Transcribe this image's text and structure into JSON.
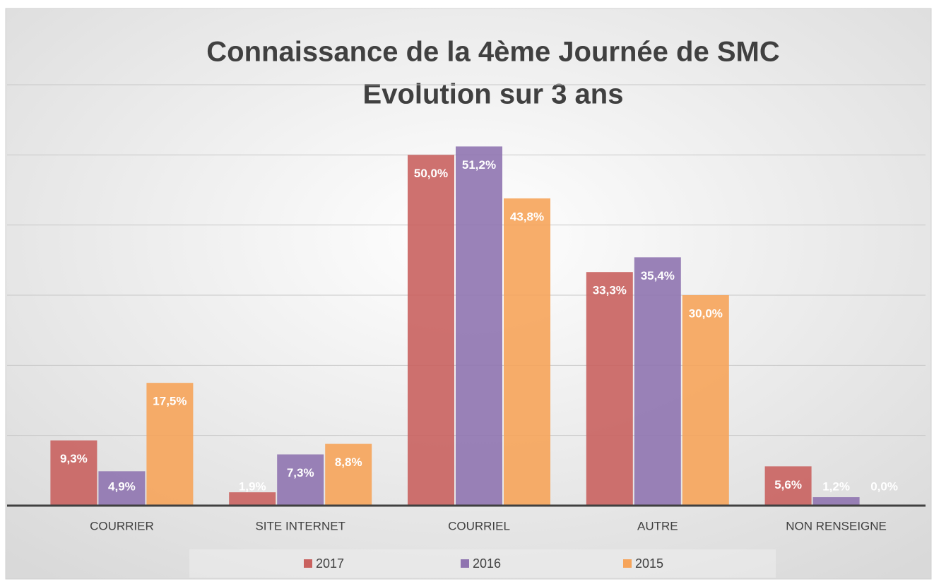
{
  "chart_data": {
    "type": "bar",
    "title": "Connaissance de la 4ème Journée de SMC",
    "subtitle": "Evolution sur 3 ans",
    "categories": [
      "COURRIER",
      "SITE INTERNET",
      "COURRIEL",
      "AUTRE",
      "NON RENSEIGNE"
    ],
    "series": [
      {
        "name": "2017",
        "color": "#c9625f",
        "values": [
          9.3,
          1.9,
          50.0,
          33.3,
          5.6
        ],
        "value_labels": [
          "9,3%",
          "1,9%",
          "50,0%",
          "33,3%",
          "5,6%"
        ]
      },
      {
        "name": "2016",
        "color": "#8f74b0",
        "values": [
          4.9,
          7.3,
          51.2,
          35.4,
          1.2
        ],
        "value_labels": [
          "4,9%",
          "7,3%",
          "51,2%",
          "35,4%",
          "1,2%"
        ]
      },
      {
        "name": "2015",
        "color": "#f6a45a",
        "values": [
          17.5,
          8.8,
          43.8,
          30.0,
          0.0
        ],
        "value_labels": [
          "17,5%",
          "8,8%",
          "43,8%",
          "30,0%",
          "0,0%"
        ]
      }
    ],
    "ylim": [
      0,
      60
    ],
    "yticks": [
      0,
      10,
      20,
      30,
      40,
      50,
      60
    ],
    "grid": true,
    "legend": "bottom"
  }
}
